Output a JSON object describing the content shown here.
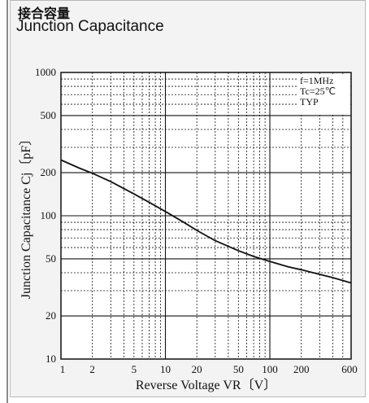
{
  "header": {
    "title_jp": "接合容量",
    "title_en": "Junction Capacitance"
  },
  "chart_data": {
    "type": "line",
    "x_scale": "log",
    "y_scale": "log",
    "xlim": [
      1,
      600
    ],
    "ylim": [
      10,
      1000
    ],
    "x_ticks": [
      1,
      2,
      5,
      10,
      20,
      50,
      100,
      200,
      600
    ],
    "y_ticks": [
      10,
      20,
      50,
      100,
      200,
      500,
      1000
    ],
    "xlabel": "Reverse Voltage  VR〔V〕",
    "ylabel": "Junction Capacitance  Cj〔pF〕",
    "conditions": [
      "f=1MHz",
      "Tc=25℃",
      "TYP"
    ],
    "grid": true,
    "series": [
      {
        "x": [
          1,
          1.5,
          2,
          3,
          5,
          7,
          10,
          15,
          20,
          30,
          50,
          70,
          100,
          150,
          200,
          300,
          400,
          600
        ],
        "y": [
          245,
          215,
          198,
          173,
          142,
          124,
          107,
          90,
          79,
          67,
          57,
          52,
          48,
          44,
          42,
          39,
          37,
          34
        ]
      }
    ]
  },
  "colors": {
    "line": "#111111",
    "panel": "#f3f3f3",
    "plot_bg": "#ffffff"
  }
}
